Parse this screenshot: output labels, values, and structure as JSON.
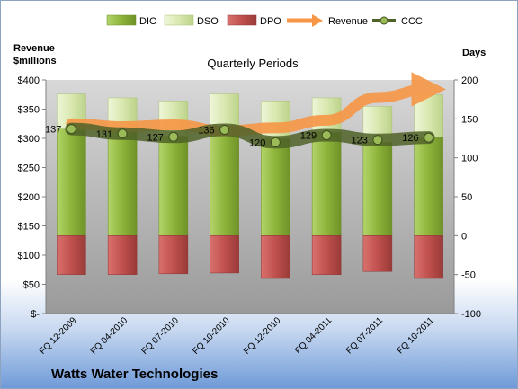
{
  "chart_data": {
    "type": "bar",
    "title": "Quarterly Periods",
    "company": "Watts Water Technologies",
    "left_axis_label_line1": "Revenue",
    "left_axis_label_line2": "$millions",
    "right_axis_label": "Days",
    "categories": [
      "FQ 12-2009",
      "FQ 04-2010",
      "FQ 07-2010",
      "FQ 10-2010",
      "FQ 12-2010",
      "FQ 04-2011",
      "FQ 07-2011",
      "FQ 10-2011"
    ],
    "left_ylim": [
      0,
      400
    ],
    "left_ticks": [
      "$-",
      "$50",
      "$100",
      "$150",
      "$200",
      "$250",
      "$300",
      "$350",
      "$400"
    ],
    "right_ylim": [
      -100,
      200
    ],
    "right_ticks": [
      "-100",
      "-50",
      "0",
      "50",
      "100",
      "150",
      "200"
    ],
    "series": [
      {
        "name": "DIO",
        "axis": "right",
        "stack": "positive",
        "color": "#8db43a",
        "values": [
          137,
          134,
          128,
          137,
          125,
          133,
          120,
          127
        ]
      },
      {
        "name": "DSO",
        "axis": "right",
        "stack": "positive",
        "color": "#d9e8b0",
        "values": [
          45,
          43,
          45,
          45,
          48,
          44,
          46,
          54
        ]
      },
      {
        "name": "DPO",
        "axis": "right",
        "stack": "negative",
        "color": "#c0504d",
        "values": [
          -50,
          -50,
          -49,
          -48,
          -55,
          -50,
          -46,
          -55
        ]
      },
      {
        "name": "Revenue",
        "axis": "left",
        "type": "line",
        "color": "#f79646",
        "values": [
          325,
          320,
          323,
          313,
          318,
          331,
          370,
          384
        ]
      },
      {
        "name": "CCC",
        "axis": "right",
        "type": "line",
        "color": "#4f6228",
        "values": [
          137,
          131,
          127,
          136,
          120,
          129,
          123,
          126
        ]
      }
    ],
    "ccc_labels": [
      "137",
      "131",
      "127",
      "136",
      "120",
      "129",
      "123",
      "126"
    ],
    "grid": false,
    "legend_position": "top"
  }
}
